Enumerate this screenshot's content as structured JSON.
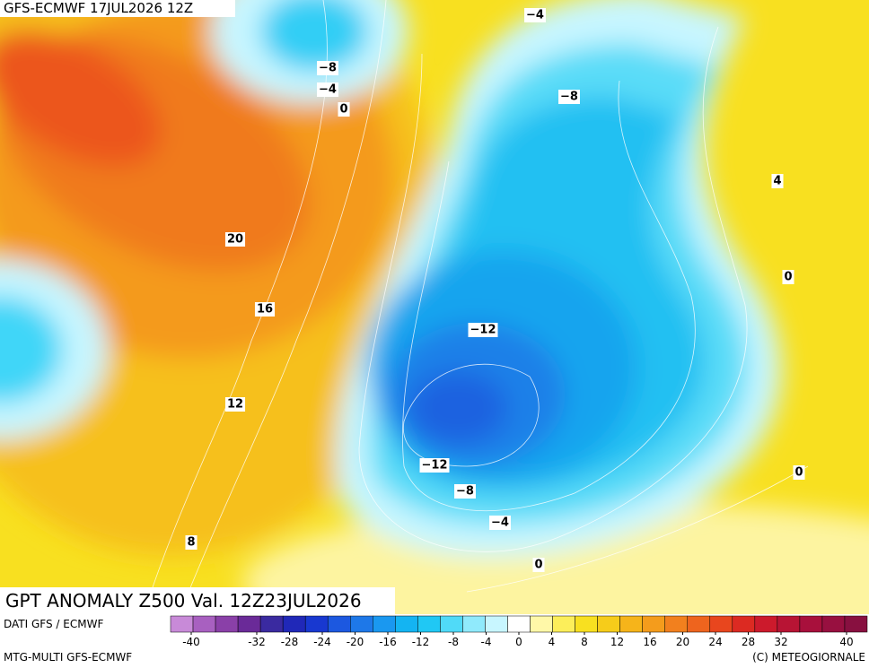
{
  "header": {
    "run": "GFS-ECMWF 17JUL2026 12Z",
    "title": "GPT ANOMALY Z500 Val. 12Z23JUL2026"
  },
  "contour_labels": [
    "−4",
    "−8",
    "−4",
    "0",
    "−8",
    "4",
    "20",
    "0",
    "16",
    "−12",
    "12",
    "−12",
    "0",
    "−8",
    "−4",
    "8",
    "0"
  ],
  "footer": {
    "source": "DATI GFS / ECMWF",
    "model": "MTG-MULTI GFS-ECMWF",
    "copyright": "(C) METEOGIORNALE"
  },
  "colorbar": {
    "colors": [
      "#c88ad8",
      "#a860c0",
      "#8a40a8",
      "#6a2a98",
      "#3a2aa0",
      "#2028b8",
      "#1838d0",
      "#1c58e0",
      "#1e78e8",
      "#1a98f0",
      "#14b4f2",
      "#20c8f4",
      "#50daf8",
      "#90eafc",
      "#c8f6ff",
      "#ffffff",
      "#fff8a8",
      "#fcee5a",
      "#f8e020",
      "#f6cc1a",
      "#f6b41a",
      "#f49c1c",
      "#f2801e",
      "#ee641e",
      "#e8461e",
      "#dc2a22",
      "#cc1a2c",
      "#b81434",
      "#a8103c",
      "#981040",
      "#881040"
    ],
    "ticks": [
      -40,
      -32,
      -28,
      -24,
      -20,
      -16,
      -12,
      -8,
      -4,
      0,
      4,
      8,
      12,
      16,
      20,
      24,
      28,
      32,
      40
    ]
  }
}
